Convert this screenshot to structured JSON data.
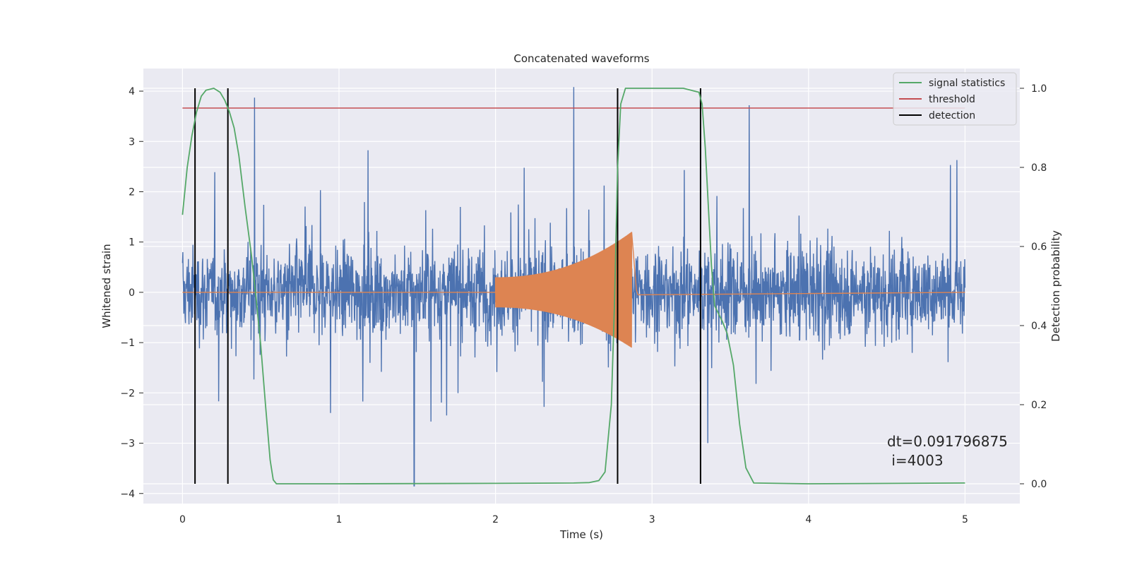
{
  "chart_data": {
    "type": "line",
    "title": "Concatenated waveforms",
    "xlabel": "Time (s)",
    "ylabel": "Whitened strain",
    "y2label": "Detection probability",
    "xlim": [
      -0.25,
      5.35
    ],
    "ylim": [
      -4.2,
      4.45
    ],
    "y2lim": [
      -0.05,
      1.05
    ],
    "xticks": [
      0,
      1,
      2,
      3,
      4,
      5
    ],
    "yticks": [
      -4,
      -3,
      -2,
      -1,
      0,
      1,
      2,
      3,
      4
    ],
    "y2ticks": [
      0.0,
      0.2,
      0.4,
      0.6,
      0.8,
      1.0
    ],
    "xtick_labels": [
      "0",
      "1",
      "2",
      "3",
      "4",
      "5"
    ],
    "ytick_labels": [
      "−4",
      "−3",
      "−2",
      "−1",
      "0",
      "1",
      "2",
      "3",
      "4"
    ],
    "y2tick_labels": [
      "0.0",
      "0.2",
      "0.4",
      "0.6",
      "0.8",
      "1.0"
    ],
    "grid": true,
    "legend_position": "top-right",
    "colors": {
      "background": "#eaeaf2",
      "grid": "#ffffff",
      "strain": "#4c72b0",
      "injection": "#dd8452",
      "signal_statistics": "#55a868",
      "threshold": "#c44e52",
      "detection": "#000000"
    },
    "strain_noise": {
      "x_range": [
        0,
        5
      ],
      "spike_times": [
        0.46,
        1.48,
        2.5,
        3.62
      ],
      "spike_values": [
        3.87,
        -3.85,
        4.08,
        3.72
      ]
    },
    "injection": {
      "x_start": 2.0,
      "x_peak": 2.87,
      "x_end": 2.9,
      "amplitude_start": 0.3,
      "amplitude_peak": 1.2,
      "amplitude_peak_negative": -1.1
    },
    "signal_statistics": {
      "x": [
        0,
        0.03,
        0.06,
        0.09,
        0.12,
        0.15,
        0.2,
        0.24,
        0.27,
        0.3,
        0.33,
        0.36,
        0.4,
        0.44,
        0.47,
        0.5,
        0.53,
        0.56,
        0.58,
        0.6,
        1.0,
        2.0,
        2.5,
        2.6,
        2.66,
        2.7,
        2.74,
        2.76,
        2.78,
        2.8,
        2.83,
        2.88,
        3.0,
        3.2,
        3.3,
        3.32,
        3.34,
        3.36,
        3.38,
        3.4,
        3.45,
        3.48,
        3.52,
        3.56,
        3.6,
        3.65,
        4.0,
        5.0
      ],
      "y": [
        0.68,
        0.8,
        0.88,
        0.94,
        0.98,
        0.995,
        1.0,
        0.99,
        0.97,
        0.94,
        0.9,
        0.83,
        0.7,
        0.58,
        0.47,
        0.35,
        0.2,
        0.06,
        0.01,
        0.0,
        0.0,
        0.001,
        0.002,
        0.003,
        0.008,
        0.03,
        0.2,
        0.45,
        0.8,
        0.96,
        1.0,
        1.0,
        1.0,
        1.0,
        0.99,
        0.96,
        0.85,
        0.7,
        0.55,
        0.45,
        0.41,
        0.38,
        0.3,
        0.15,
        0.04,
        0.002,
        0.0,
        0.002
      ]
    },
    "threshold": {
      "x": [
        0,
        5
      ],
      "y": 0.95
    },
    "detections": [
      0.08,
      0.29,
      2.78,
      3.31
    ],
    "series": [
      {
        "name": "signal statistics"
      },
      {
        "name": "threshold"
      },
      {
        "name": "detection"
      }
    ],
    "annotation": {
      "line1": "dt=0.091796875",
      "line2": " i=4003"
    }
  }
}
